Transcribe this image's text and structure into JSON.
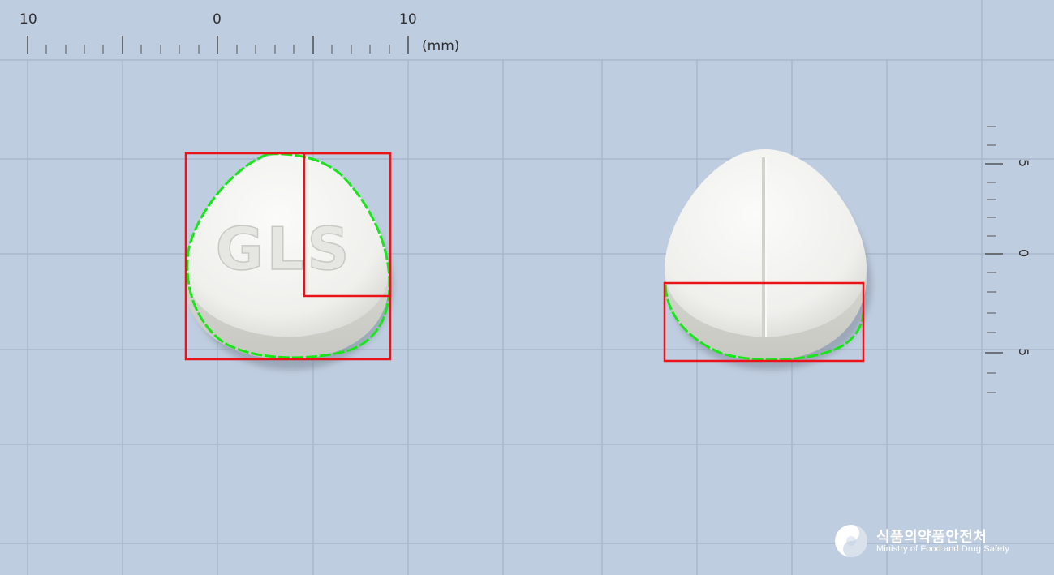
{
  "ruler_top": {
    "labels": [
      "10",
      "0",
      "10"
    ],
    "unit": "(mm)"
  },
  "ruler_right": {
    "labels": [
      "5",
      "0",
      "5"
    ]
  },
  "pill_front": {
    "imprint": "GLS",
    "color": "#f4f4f2"
  },
  "pill_back": {
    "color": "#f4f4f2"
  },
  "annotation_colors": {
    "box": "#e8141a",
    "contour": "#19e619"
  },
  "logo": {
    "korean": "식품의약품안전처",
    "english": "Ministry of Food and Drug Safety"
  }
}
